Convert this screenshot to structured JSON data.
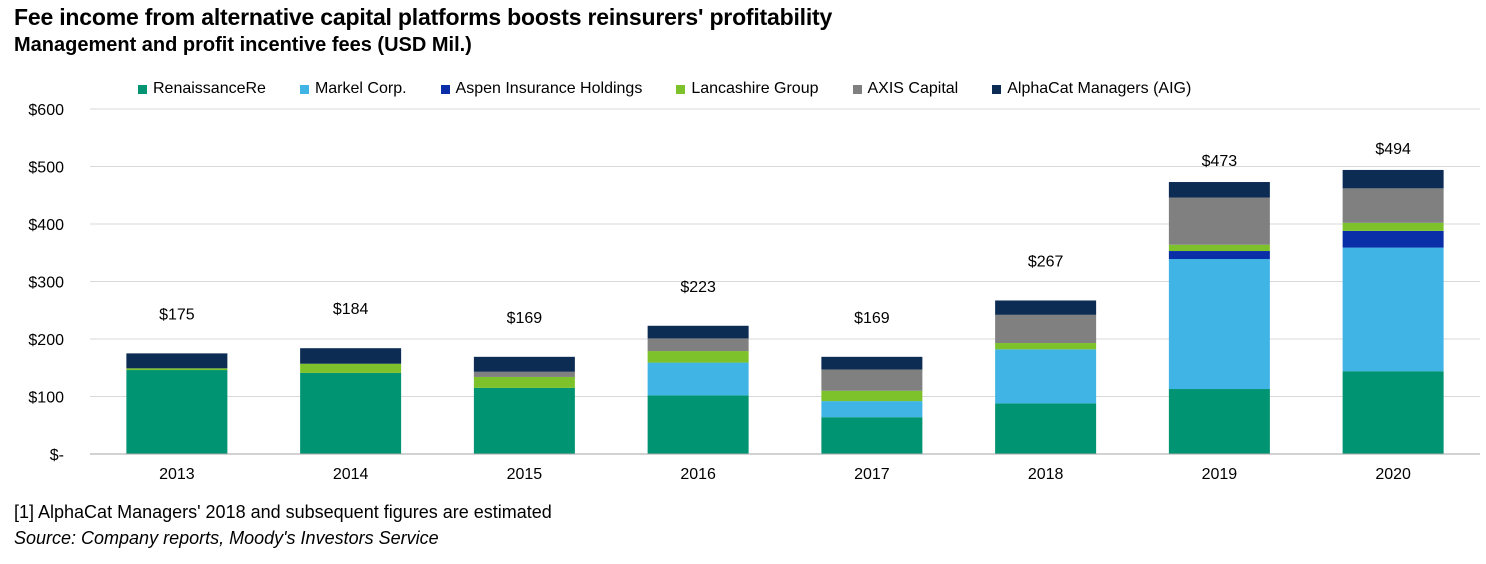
{
  "header": {
    "title": "Fee income from alternative capital platforms boosts reinsurers' profitability",
    "subtitle": "Management and profit incentive fees (USD Mil.)"
  },
  "footer": {
    "footnote": "[1] AlphaCat Managers' 2018 and subsequent figures are estimated",
    "source": "Source: Company reports, Moody's Investors Service"
  },
  "chart_data": {
    "type": "bar",
    "stacked": true,
    "title": "Fee income from alternative capital platforms boosts reinsurers' profitability",
    "subtitle": "Management and profit incentive fees (USD Mil.)",
    "categories": [
      "2013",
      "2014",
      "2015",
      "2016",
      "2017",
      "2018",
      "2019",
      "2020"
    ],
    "series": [
      {
        "name": "RenaissanceRe",
        "color": "#009473",
        "values": [
          146,
          141,
          115,
          102,
          64,
          88,
          113,
          144
        ]
      },
      {
        "name": "Markel Corp.",
        "color": "#40B4E5",
        "values": [
          0,
          0,
          0,
          57,
          28,
          94,
          226,
          215
        ]
      },
      {
        "name": "Aspen Insurance Holdings",
        "color": "#0A2DA8",
        "values": [
          0,
          0,
          0,
          0,
          0,
          0,
          14,
          29
        ]
      },
      {
        "name": "Lancashire Group",
        "color": "#7DC22B",
        "values": [
          3,
          16,
          19,
          20,
          18,
          11,
          11,
          14
        ]
      },
      {
        "name": "AXIS Capital",
        "color": "#808080",
        "values": [
          0,
          0,
          9,
          22,
          37,
          49,
          82,
          60
        ]
      },
      {
        "name": "AlphaCat Managers (AIG)",
        "color": "#0D2C54",
        "values": [
          26,
          27,
          26,
          22,
          22,
          25,
          27,
          32
        ]
      }
    ],
    "totals": [
      175,
      184,
      169,
      223,
      169,
      267,
      473,
      494
    ],
    "total_labels": [
      "$175",
      "$184",
      "$169",
      "$223",
      "$169",
      "$267",
      "$473",
      "$494"
    ],
    "ylim": [
      0,
      600
    ],
    "yticks": [
      0,
      100,
      200,
      300,
      400,
      500,
      600
    ],
    "ytick_labels": [
      "$-",
      "$100",
      "$200",
      "$300",
      "$400",
      "$500",
      "$600"
    ],
    "xlabel": "",
    "ylabel": "",
    "grid": true,
    "legend_position": "top"
  }
}
